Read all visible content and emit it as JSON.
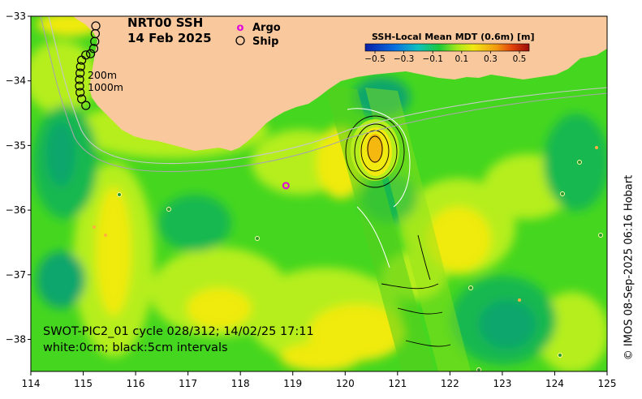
{
  "title": {
    "line1": "NRT00 SSH",
    "line2": "14 Feb 2025"
  },
  "legend": {
    "argo_label": "Argo",
    "ship_label": "Ship",
    "argo_marker": "o",
    "argo_color": "#e000e0",
    "ship_color": "#000000"
  },
  "colorbar": {
    "title": "SSH-Local Mean MDT (0.6m) [m]",
    "ticks": [
      "−0.5",
      "−0.3",
      "−0.1",
      "0.1",
      "0.3",
      "0.5"
    ]
  },
  "isobaths": {
    "label_200": "200m",
    "label_1000": "1000m"
  },
  "caption": {
    "line1": "SWOT-PIC2_01 cycle 028/312; 14/02/25 17:11",
    "line2": "white:0cm; black:5cm intervals"
  },
  "axes": {
    "x_ticks": [
      "114",
      "115",
      "116",
      "117",
      "118",
      "119",
      "120",
      "121",
      "122",
      "123",
      "124",
      "125"
    ],
    "y_ticks": [
      "−33",
      "−34",
      "−35",
      "−36",
      "−37",
      "−38"
    ],
    "lon_range": [
      114,
      125
    ],
    "lat_range": [
      -38.5,
      -33
    ]
  },
  "credit": "© IMOS 08-Sep-2025 06:16 Hobart",
  "colors": {
    "land": "#f9c89c",
    "sea_green": "#45d620",
    "sea_lime": "#b5ee1c",
    "sea_yellow": "#f0ea10",
    "sea_teal": "#19b84f",
    "sea_deep": "#0ea66c"
  },
  "argo_float": {
    "lon": 118.87,
    "lat": -35.62
  },
  "ship_track": [
    {
      "lon": 115.24,
      "lat": -33.15
    },
    {
      "lon": 115.23,
      "lat": -33.27
    },
    {
      "lon": 115.22,
      "lat": -33.39
    },
    {
      "lon": 115.2,
      "lat": -33.5
    },
    {
      "lon": 115.14,
      "lat": -33.58
    },
    {
      "lon": 115.05,
      "lat": -33.6
    },
    {
      "lon": 114.97,
      "lat": -33.68
    },
    {
      "lon": 114.95,
      "lat": -33.78
    },
    {
      "lon": 114.94,
      "lat": -33.88
    },
    {
      "lon": 114.93,
      "lat": -33.98
    },
    {
      "lon": 114.93,
      "lat": -34.08
    },
    {
      "lon": 114.94,
      "lat": -34.18
    },
    {
      "lon": 114.97,
      "lat": -34.28
    },
    {
      "lon": 115.05,
      "lat": -34.38
    }
  ]
}
